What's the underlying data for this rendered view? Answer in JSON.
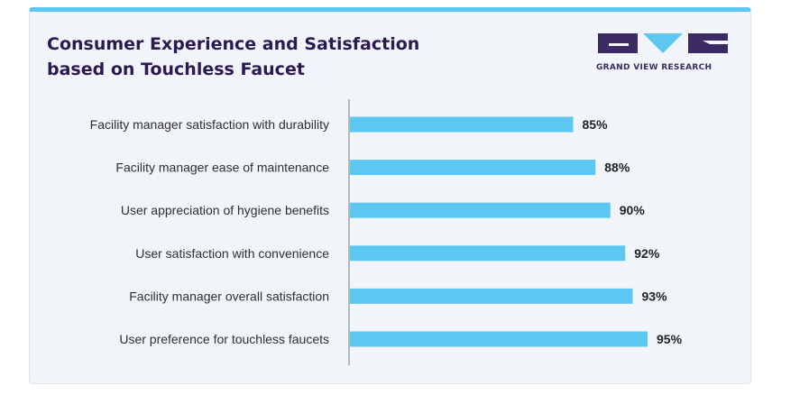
{
  "header": {
    "title": "Consumer Experience and Satisfaction\nbased on Touchless Faucet",
    "logo_text": "GRAND VIEW RESEARCH"
  },
  "colors": {
    "bar": "#5cc8f2",
    "title": "#2b1a4f",
    "logo_dark": "#3b2a63",
    "logo_accent": "#5cc8f2",
    "card_bg": "#f1f5f9"
  },
  "chart_data": {
    "type": "bar",
    "orientation": "horizontal",
    "title": "Consumer Experience and Satisfaction based on Touchless Faucet",
    "categories": [
      "Facility manager satisfaction with durability",
      "Facility manager ease of maintenance",
      "User appreciation of hygiene benefits",
      "User satisfaction with convenience",
      "Facility manager overall satisfaction",
      "User preference for touchless faucets"
    ],
    "values": [
      85,
      88,
      90,
      92,
      93,
      95
    ],
    "value_labels": [
      "85%",
      "88%",
      "90%",
      "92%",
      "93%",
      "95%"
    ],
    "unit": "%",
    "xlim": [
      55,
      100
    ],
    "grid": false,
    "legend": "none"
  }
}
